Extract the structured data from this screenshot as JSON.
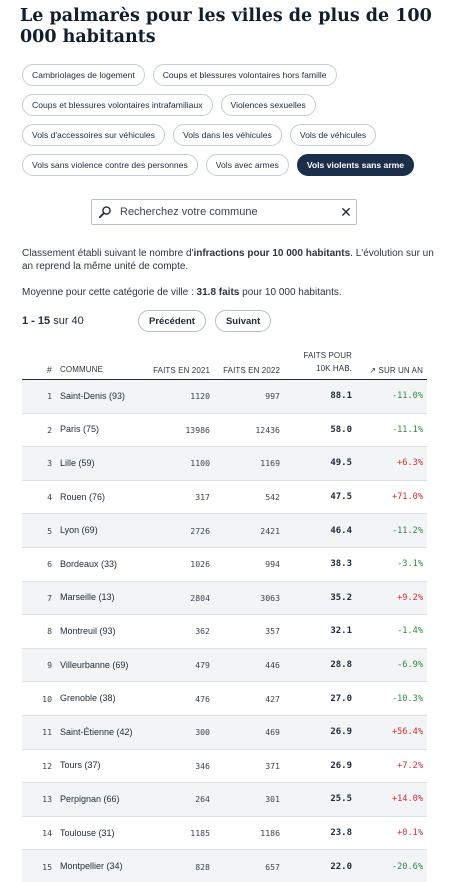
{
  "title": "Le palmarès pour les villes de plus de 100 000 habitants",
  "filters": [
    [
      "Cambriolages de logement",
      "Coups et blessures volontaires hors famille"
    ],
    [
      "Coups et blessures volontaires intrafamiliaux",
      "Violences sexuelles"
    ],
    [
      "Vols d'accessoires sur véhicules",
      "Vols dans les véhicules",
      "Vols de véhicules"
    ],
    [
      "Vols sans violence contre des personnes",
      "Vols avec armes",
      "Vols violents sans arme"
    ]
  ],
  "active_filter": "Vols violents sans arme",
  "search": {
    "placeholder": "Recherchez votre commune",
    "value": ""
  },
  "description": {
    "part1": "Classement établi suivant le nombre d'",
    "bold": "infractions pour 10 000 habitants",
    "part2": ". L'évolution sur un an reprend la même unité de compte."
  },
  "average": {
    "prefix": "Moyenne pour cette catégorie de ville : ",
    "value": "31.8",
    "bold_suffix": " faits",
    "suffix": " pour 10 000 habitants."
  },
  "pager": {
    "range": "1 - 15",
    "of": " sur 40",
    "prev": "Précédent",
    "next": "Suivant"
  },
  "table": {
    "headers": {
      "rank": "#",
      "commune": "COMMUNE",
      "faits_2021": "FAITS EN 2021",
      "faits_2022": "FAITS EN 2022",
      "per_10k_line1": "FAITS POUR",
      "per_10k_line2": "10K HAB.",
      "evolution": "↗ SUR UN AN"
    },
    "rows": [
      {
        "rank": "1",
        "commune": "Saint-Denis (93)",
        "f2021": "1120",
        "f2022": "997",
        "per10k": "88.1",
        "evo": "-11.0%"
      },
      {
        "rank": "2",
        "commune": "Paris (75)",
        "f2021": "13986",
        "f2022": "12436",
        "per10k": "58.0",
        "evo": "-11.1%"
      },
      {
        "rank": "3",
        "commune": "Lille (59)",
        "f2021": "1100",
        "f2022": "1169",
        "per10k": "49.5",
        "evo": "+6.3%"
      },
      {
        "rank": "4",
        "commune": "Rouen (76)",
        "f2021": "317",
        "f2022": "542",
        "per10k": "47.5",
        "evo": "+71.0%"
      },
      {
        "rank": "5",
        "commune": "Lyon (69)",
        "f2021": "2726",
        "f2022": "2421",
        "per10k": "46.4",
        "evo": "-11.2%"
      },
      {
        "rank": "6",
        "commune": "Bordeaux (33)",
        "f2021": "1026",
        "f2022": "994",
        "per10k": "38.3",
        "evo": "-3.1%"
      },
      {
        "rank": "7",
        "commune": "Marseille (13)",
        "f2021": "2804",
        "f2022": "3063",
        "per10k": "35.2",
        "evo": "+9.2%"
      },
      {
        "rank": "8",
        "commune": "Montreuil (93)",
        "f2021": "362",
        "f2022": "357",
        "per10k": "32.1",
        "evo": "-1.4%"
      },
      {
        "rank": "9",
        "commune": "Villeurbanne (69)",
        "f2021": "479",
        "f2022": "446",
        "per10k": "28.8",
        "evo": "-6.9%"
      },
      {
        "rank": "10",
        "commune": "Grenoble (38)",
        "f2021": "476",
        "f2022": "427",
        "per10k": "27.0",
        "evo": "-10.3%"
      },
      {
        "rank": "11",
        "commune": "Saint-Étienne (42)",
        "f2021": "300",
        "f2022": "469",
        "per10k": "26.9",
        "evo": "+56.4%"
      },
      {
        "rank": "12",
        "commune": "Tours (37)",
        "f2021": "346",
        "f2022": "371",
        "per10k": "26.9",
        "evo": "+7.2%"
      },
      {
        "rank": "13",
        "commune": "Perpignan (66)",
        "f2021": "264",
        "f2022": "301",
        "per10k": "25.5",
        "evo": "+14.0%"
      },
      {
        "rank": "14",
        "commune": "Toulouse (31)",
        "f2021": "1185",
        "f2022": "1186",
        "per10k": "23.8",
        "evo": "+0.1%"
      },
      {
        "rank": "15",
        "commune": "Montpellier (34)",
        "f2021": "828",
        "f2022": "657",
        "per10k": "22.0",
        "evo": "-20.6%"
      }
    ]
  },
  "colors": {
    "active_chip": "#1b2f4a",
    "increase": "#d1302f",
    "decrease": "#2e8b3e"
  }
}
